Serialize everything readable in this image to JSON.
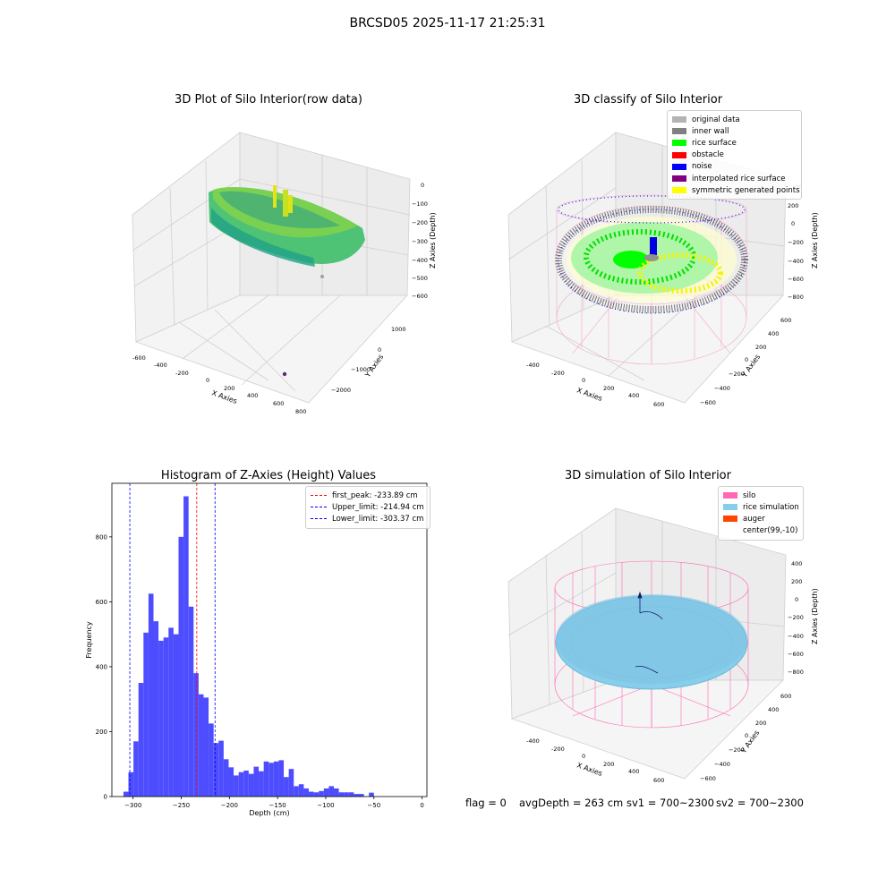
{
  "suptitle": "BRCSD05 2025-11-17 21:25:31",
  "panels": {
    "raw": {
      "title": "3D Plot of Silo Interior(row data)",
      "xlabel": "X Axies",
      "ylabel": "Y Axies",
      "zlabel": "Z Axies (Depth)",
      "xticks": [
        "-600",
        "-400",
        "-200",
        "0",
        "200",
        "400",
        "600",
        "800"
      ],
      "yticks": [
        "1000",
        "0",
        "−1000",
        "−2000"
      ],
      "zticks": [
        "0",
        "−100",
        "−200",
        "−300",
        "−400",
        "−500",
        "−600"
      ]
    },
    "classify": {
      "title": "3D classify of Silo Interior",
      "xlabel": "X Axies",
      "ylabel": "Y Axies",
      "zlabel": "Z Axies (Depth)",
      "xticks": [
        "-400",
        "-200",
        "0",
        "200",
        "400",
        "600"
      ],
      "yticks": [
        "600",
        "400",
        "200",
        "0",
        "−200",
        "−400",
        "−600"
      ],
      "zticks": [
        "200",
        "0",
        "−200",
        "−400",
        "−600",
        "−800"
      ],
      "legend": [
        {
          "label": "original data",
          "color": "#b3b3b3"
        },
        {
          "label": "inner wall",
          "color": "#808080"
        },
        {
          "label": "rice surface",
          "color": "#00ff00"
        },
        {
          "label": "obstacle",
          "color": "#ff0000"
        },
        {
          "label": "noise",
          "color": "#0000ff"
        },
        {
          "label": "interpolated rice surface",
          "color": "#800080"
        },
        {
          "label": "symmetric generated points",
          "color": "#ffff00"
        }
      ],
      "ztick_partial": "00"
    },
    "histogram": {
      "title": "Histogram of Z-Axies (Height) Values",
      "xlabel": "Depth (cm)",
      "ylabel": "Frequency",
      "legend": [
        {
          "label": "first_peak: -233.89 cm",
          "color": "#ff0000"
        },
        {
          "label": "Upper_limit: -214.94 cm",
          "color": "#0000ff"
        },
        {
          "label": "Lower_limit: -303.37 cm",
          "color": "#0000ff"
        }
      ]
    },
    "simulation": {
      "title": "3D simulation of Silo Interior",
      "xlabel": "X Axies",
      "ylabel": "Y Axies",
      "zlabel": "Z Axies (Depth)",
      "xticks": [
        "-400",
        "-200",
        "0",
        "200",
        "400",
        "600"
      ],
      "yticks": [
        "600",
        "400",
        "200",
        "0",
        "−200",
        "−400",
        "−600"
      ],
      "zticks": [
        "400",
        "200",
        "0",
        "−200",
        "−400",
        "−600",
        "−800"
      ],
      "legend": [
        {
          "label": "silo",
          "color": "#ff69b4"
        },
        {
          "label": "rice simulation",
          "color": "#87ceeb"
        },
        {
          "label": "auger",
          "color": "#ff4500"
        },
        {
          "label": "center(99,-10)",
          "color": ""
        }
      ]
    }
  },
  "footer": {
    "flag": "flag = 0",
    "avg": "avgDepth = 263 cm",
    "sv1": "sv1 = 700~2300",
    "sv2": "sv2 = 700~2300"
  },
  "colors": {
    "bar": "#4d4dff",
    "peak": "#ff0000",
    "limit": "#0000ff"
  },
  "chart_data": [
    {
      "type": "histogram",
      "title": "Histogram of Z-Axies (Height) Values",
      "xlabel": "Depth (cm)",
      "ylabel": "Frequency",
      "xlim": [
        -322,
        5
      ],
      "ylim": [
        0,
        965
      ],
      "xticks": [
        -300,
        -250,
        -200,
        -150,
        -100,
        -50,
        0
      ],
      "yticks": [
        0,
        200,
        400,
        600,
        800
      ],
      "bin_width": 5.2,
      "bin_start": -310,
      "counts": [
        15,
        75,
        170,
        350,
        505,
        625,
        540,
        480,
        490,
        520,
        500,
        800,
        925,
        585,
        380,
        315,
        305,
        225,
        165,
        172,
        115,
        90,
        65,
        75,
        80,
        70,
        92,
        78,
        108,
        104,
        108,
        112,
        60,
        85,
        32,
        38,
        25,
        15,
        13,
        17,
        25,
        32,
        25,
        13,
        13,
        13,
        8,
        8,
        0,
        12
      ],
      "lines": [
        {
          "name": "first_peak: -233.89 cm",
          "x": -233.89,
          "style": "dashed",
          "color": "#ff0000"
        },
        {
          "name": "Upper_limit: -214.94 cm",
          "x": -214.94,
          "style": "dashed",
          "color": "#0000ff"
        },
        {
          "name": "Lower_limit: -303.37 cm",
          "x": -303.37,
          "style": "dashed",
          "color": "#0000ff"
        }
      ],
      "legend_position": "top-right",
      "grid": false
    }
  ]
}
